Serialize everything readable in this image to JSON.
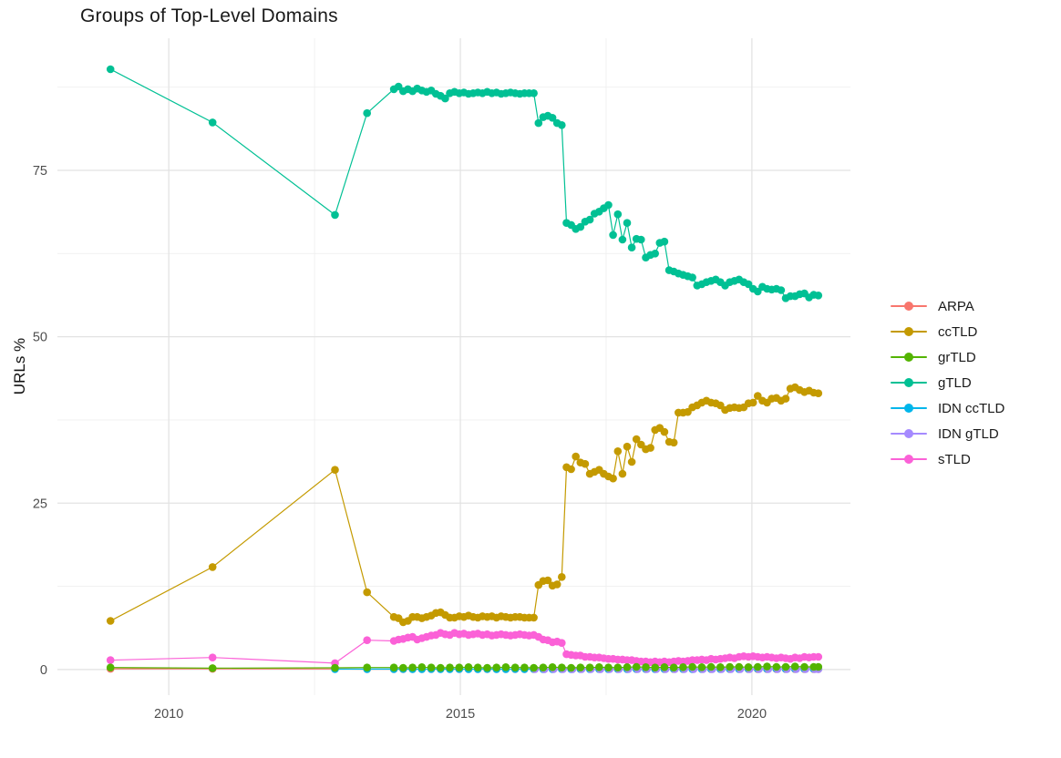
{
  "page": {
    "title": "Groups of Top-Level Domains",
    "y_axis_label": "URLs %"
  },
  "chart_data": {
    "type": "line",
    "title": "Groups of Top-Level Domains",
    "xlabel": "",
    "ylabel": "URLs %",
    "grid": true,
    "legend_position": "right",
    "x_ticks": [
      2010,
      2015,
      2020
    ],
    "x_tick_labels": [
      "2010",
      "2015",
      "2020"
    ],
    "x_minor_ticks": [
      2012.5,
      2017.5
    ],
    "y_ticks": [
      0,
      25,
      50,
      75
    ],
    "y_tick_labels": [
      "0",
      "25",
      "50",
      "75"
    ],
    "y_minor_ticks": [
      12.5,
      37.5,
      62.5,
      87.5
    ],
    "xlim": [
      2008.09,
      2021.69
    ],
    "ylim": [
      -3.85,
      94.85
    ],
    "draw_order": [
      "ARPA",
      "IDN ccTLD",
      "IDN gTLD",
      "sTLD",
      "grTLD",
      "ccTLD",
      "gTLD"
    ],
    "series": [
      {
        "name": "ARPA",
        "color": "#F8766D",
        "segments": [
          {
            "points": [
              [
                2009.0,
                0.1
              ],
              [
                2010.75,
                0.1
              ],
              [
                2012.85,
                0.08
              ],
              [
                2013.4,
                0.05
              ]
            ]
          },
          {
            "x0": 2013.86,
            "dx": 0.16,
            "y": [
              0.05,
              0.05,
              0.05,
              0.05,
              0.05,
              0.05,
              0.05,
              0.05,
              0.05,
              0.05,
              0.05,
              0.05,
              0.05,
              0.05,
              0.05,
              0.05,
              0.05,
              0.05,
              0.05,
              0.05,
              0.05,
              0.05,
              0.05,
              0.05,
              0.05,
              0.05,
              0.05,
              0.05,
              0.05,
              0.05,
              0.05,
              0.05,
              0.05,
              0.05,
              0.05,
              0.05,
              0.05,
              0.05,
              0.05,
              0.05,
              0.05,
              0.05,
              0.05,
              0.05,
              0.05,
              0.05
            ]
          },
          {
            "points": [
              [
                2021.14,
                0.05
              ]
            ]
          }
        ]
      },
      {
        "name": "ccTLD",
        "color": "#C49A00",
        "segments": [
          {
            "points": [
              [
                2009.0,
                7.3
              ],
              [
                2010.75,
                15.4
              ],
              [
                2012.85,
                30.0
              ],
              [
                2013.4,
                11.6
              ]
            ]
          },
          {
            "x0": 2013.86,
            "dx": 0.08,
            "y": [
              7.9,
              7.7,
              7.1,
              7.3,
              7.9,
              7.9,
              7.7,
              7.9,
              8.1,
              8.5,
              8.6,
              8.2,
              7.8,
              7.8,
              8.0,
              7.9,
              8.1,
              7.9,
              7.8,
              8.0,
              7.9,
              8.0,
              7.8,
              8.0,
              7.9,
              7.8,
              7.9,
              7.9,
              7.8,
              7.8,
              7.8,
              12.7,
              13.3,
              13.4,
              12.6,
              12.8,
              13.9,
              30.4,
              30.1,
              32.0,
              31.1,
              30.9,
              29.4,
              29.7,
              30.0,
              29.4,
              29.0,
              28.7,
              32.8,
              29.4,
              33.5,
              31.2,
              34.6,
              33.8,
              33.1,
              33.3,
              36.0,
              36.3,
              35.7,
              34.2,
              34.1,
              38.6,
              38.6,
              38.7,
              39.4,
              39.7,
              40.1,
              40.4,
              40.1,
              40.0,
              39.7,
              39.0,
              39.3,
              39.4,
              39.3,
              39.4,
              40.0,
              40.1,
              41.1,
              40.4,
              40.1,
              40.7,
              40.8,
              40.4,
              40.7,
              42.2,
              42.4,
              42.0,
              41.7,
              41.9,
              41.6,
              41.5
            ]
          }
        ]
      },
      {
        "name": "grTLD",
        "color": "#53B400",
        "segments": [
          {
            "points": [
              [
                2009.0,
                0.3
              ],
              [
                2010.75,
                0.2
              ],
              [
                2012.85,
                0.25
              ],
              [
                2013.4,
                0.3
              ]
            ]
          },
          {
            "x0": 2013.86,
            "dx": 0.16,
            "y": [
              0.3,
              0.25,
              0.3,
              0.35,
              0.3,
              0.25,
              0.3,
              0.3,
              0.35,
              0.3,
              0.25,
              0.3,
              0.35,
              0.3,
              0.3,
              0.25,
              0.3,
              0.35,
              0.3,
              0.25,
              0.3,
              0.3,
              0.35,
              0.3,
              0.3,
              0.35,
              0.4,
              0.35,
              0.3,
              0.35,
              0.3,
              0.35,
              0.4,
              0.35,
              0.4,
              0.35,
              0.4,
              0.4,
              0.35,
              0.4,
              0.45,
              0.4,
              0.4,
              0.45,
              0.4,
              0.4
            ]
          },
          {
            "points": [
              [
                2021.14,
                0.4
              ]
            ]
          }
        ]
      },
      {
        "name": "gTLD",
        "color": "#00C094",
        "segments": [
          {
            "points": [
              [
                2009.0,
                90.2
              ],
              [
                2010.75,
                82.2
              ],
              [
                2012.85,
                68.3
              ],
              [
                2013.4,
                83.6
              ]
            ]
          },
          {
            "x0": 2013.86,
            "dx": 0.08,
            "y": [
              87.2,
              87.6,
              86.9,
              87.2,
              86.9,
              87.3,
              87.0,
              86.8,
              87.0,
              86.5,
              86.2,
              85.8,
              86.6,
              86.8,
              86.6,
              86.7,
              86.5,
              86.6,
              86.7,
              86.6,
              86.8,
              86.6,
              86.7,
              86.5,
              86.6,
              86.7,
              86.6,
              86.5,
              86.6,
              86.6,
              86.6,
              82.1,
              83.0,
              83.2,
              82.9,
              82.1,
              81.8,
              67.1,
              66.8,
              66.2,
              66.5,
              67.3,
              67.6,
              68.5,
              68.8,
              69.3,
              69.8,
              65.3,
              68.4,
              64.6,
              67.1,
              63.4,
              64.7,
              64.6,
              61.9,
              62.3,
              62.5,
              64.1,
              64.3,
              60.0,
              59.8,
              59.5,
              59.3,
              59.1,
              58.9,
              57.7,
              57.9,
              58.2,
              58.4,
              58.6,
              58.2,
              57.7,
              58.2,
              58.4,
              58.6,
              58.2,
              57.9,
              57.2,
              56.8,
              57.5,
              57.2,
              57.1,
              57.2,
              57.0,
              55.8,
              56.1,
              56.1,
              56.4,
              56.5,
              55.9,
              56.3,
              56.2
            ]
          }
        ]
      },
      {
        "name": "IDN ccTLD",
        "color": "#00B6EB",
        "segments": [
          {
            "points": [
              [
                2012.85,
                0.05
              ],
              [
                2013.4,
                0.06
              ]
            ]
          },
          {
            "x0": 2013.86,
            "dx": 0.16,
            "y": [
              0.06,
              0.08,
              0.06,
              0.07,
              0.08,
              0.06,
              0.07,
              0.08,
              0.07,
              0.06,
              0.08,
              0.07,
              0.06,
              0.08,
              0.07,
              0.08,
              0.06,
              0.07,
              0.08,
              0.07,
              0.08,
              0.06,
              0.08,
              0.07,
              0.08,
              0.07,
              0.08,
              0.08,
              0.07,
              0.08,
              0.09,
              0.08,
              0.07,
              0.08,
              0.09,
              0.08,
              0.09,
              0.08,
              0.09,
              0.1,
              0.09,
              0.1,
              0.09,
              0.1,
              0.1,
              0.1
            ]
          },
          {
            "points": [
              [
                2021.14,
                0.1
              ]
            ]
          }
        ]
      },
      {
        "name": "IDN gTLD",
        "color": "#A58AFF",
        "segments": [
          {
            "x0": 2016.28,
            "dx": 0.16,
            "y": [
              0.05,
              0.04,
              0.05,
              0.05,
              0.04,
              0.05,
              0.05,
              0.04,
              0.05,
              0.05,
              0.06,
              0.05,
              0.05,
              0.06,
              0.05,
              0.05,
              0.06,
              0.05,
              0.06,
              0.05,
              0.06,
              0.06,
              0.05,
              0.06,
              0.06,
              0.05,
              0.06,
              0.06,
              0.07,
              0.06,
              0.06
            ]
          },
          {
            "points": [
              [
                2021.14,
                0.06
              ]
            ]
          }
        ]
      },
      {
        "name": "sTLD",
        "color": "#FB61D7",
        "segments": [
          {
            "points": [
              [
                2009.0,
                1.4
              ],
              [
                2010.75,
                1.8
              ],
              [
                2012.85,
                0.95
              ],
              [
                2013.4,
                4.4
              ]
            ]
          },
          {
            "x0": 2013.86,
            "dx": 0.08,
            "y": [
              4.3,
              4.5,
              4.6,
              4.8,
              4.9,
              4.5,
              4.7,
              4.9,
              5.1,
              5.2,
              5.5,
              5.3,
              5.2,
              5.5,
              5.3,
              5.4,
              5.2,
              5.3,
              5.4,
              5.2,
              5.3,
              5.1,
              5.2,
              5.3,
              5.2,
              5.1,
              5.2,
              5.3,
              5.2,
              5.1,
              5.2,
              4.9,
              4.5,
              4.4,
              4.1,
              4.2,
              4.0,
              2.3,
              2.2,
              2.1,
              2.1,
              1.9,
              1.9,
              1.8,
              1.8,
              1.7,
              1.6,
              1.6,
              1.5,
              1.5,
              1.4,
              1.4,
              1.3,
              1.2,
              1.2,
              1.1,
              1.2,
              1.1,
              1.2,
              1.1,
              1.2,
              1.3,
              1.2,
              1.3,
              1.4,
              1.4,
              1.5,
              1.4,
              1.6,
              1.5,
              1.6,
              1.7,
              1.8,
              1.7,
              1.9,
              2.0,
              1.9,
              2.0,
              1.9,
              1.8,
              1.9,
              1.8,
              1.7,
              1.8,
              1.7,
              1.6,
              1.8,
              1.7,
              1.9,
              1.8,
              1.9,
              1.9
            ]
          }
        ]
      }
    ],
    "colors": {
      "major_grid": "#E2E2E2",
      "minor_grid": "#EFEFEF",
      "axis_text": "#4e4e4e",
      "title_text": "#1a1a1a"
    }
  }
}
